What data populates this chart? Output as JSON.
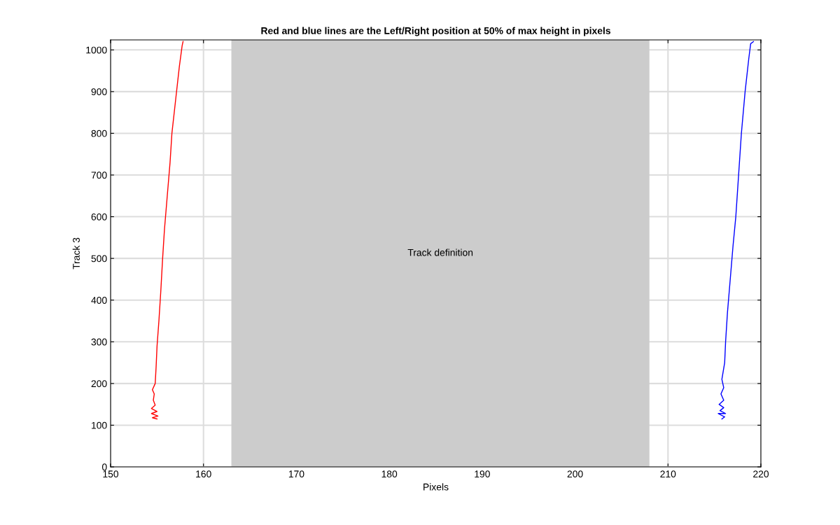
{
  "chart_data": {
    "type": "line",
    "title": "Red and blue lines are the Left/Right position at 50% of max height in pixels",
    "xlabel": "Pixels",
    "ylabel": "Track 3",
    "xlim": [
      150,
      220
    ],
    "xticks": [
      150,
      160,
      170,
      180,
      190,
      200,
      210,
      220
    ],
    "ylim": [
      0,
      1024
    ],
    "yticks": [
      0,
      100,
      200,
      300,
      400,
      500,
      600,
      700,
      800,
      900,
      1000
    ],
    "grid": true,
    "marker": "none",
    "line_style": "solid",
    "bands": [
      {
        "axis": "x",
        "from": 163,
        "to": 208,
        "label": "Track definition",
        "color": "#cccccc"
      }
    ],
    "series": [
      {
        "color": "#ff0000",
        "x": [
          155.0,
          154.5,
          155.1,
          154.4,
          155.0,
          154.4,
          154.8,
          154.6,
          154.7,
          154.5,
          154.8,
          154.9,
          155.0,
          155.2,
          155.4,
          155.6,
          155.8,
          156.1,
          156.4,
          156.6,
          157.0,
          157.4,
          157.7,
          157.8
        ],
        "values": [
          115,
          118,
          122,
          128,
          133,
          140,
          148,
          160,
          175,
          185,
          200,
          240,
          290,
          350,
          420,
          500,
          570,
          650,
          730,
          800,
          880,
          960,
          1010,
          1020
        ]
      },
      {
        "color": "#0000ff",
        "x": [
          215.8,
          216.1,
          215.4,
          216.2,
          215.6,
          216.0,
          215.5,
          216.0,
          215.7,
          216.0,
          215.8,
          216.1,
          216.2,
          216.4,
          216.7,
          217.0,
          217.3,
          217.6,
          217.9,
          218.3,
          218.7,
          218.9,
          219.2
        ],
        "values": [
          115,
          120,
          128,
          128,
          135,
          142,
          150,
          160,
          175,
          190,
          210,
          250,
          300,
          370,
          450,
          530,
          600,
          700,
          800,
          900,
          980,
          1015,
          1020
        ]
      }
    ]
  }
}
